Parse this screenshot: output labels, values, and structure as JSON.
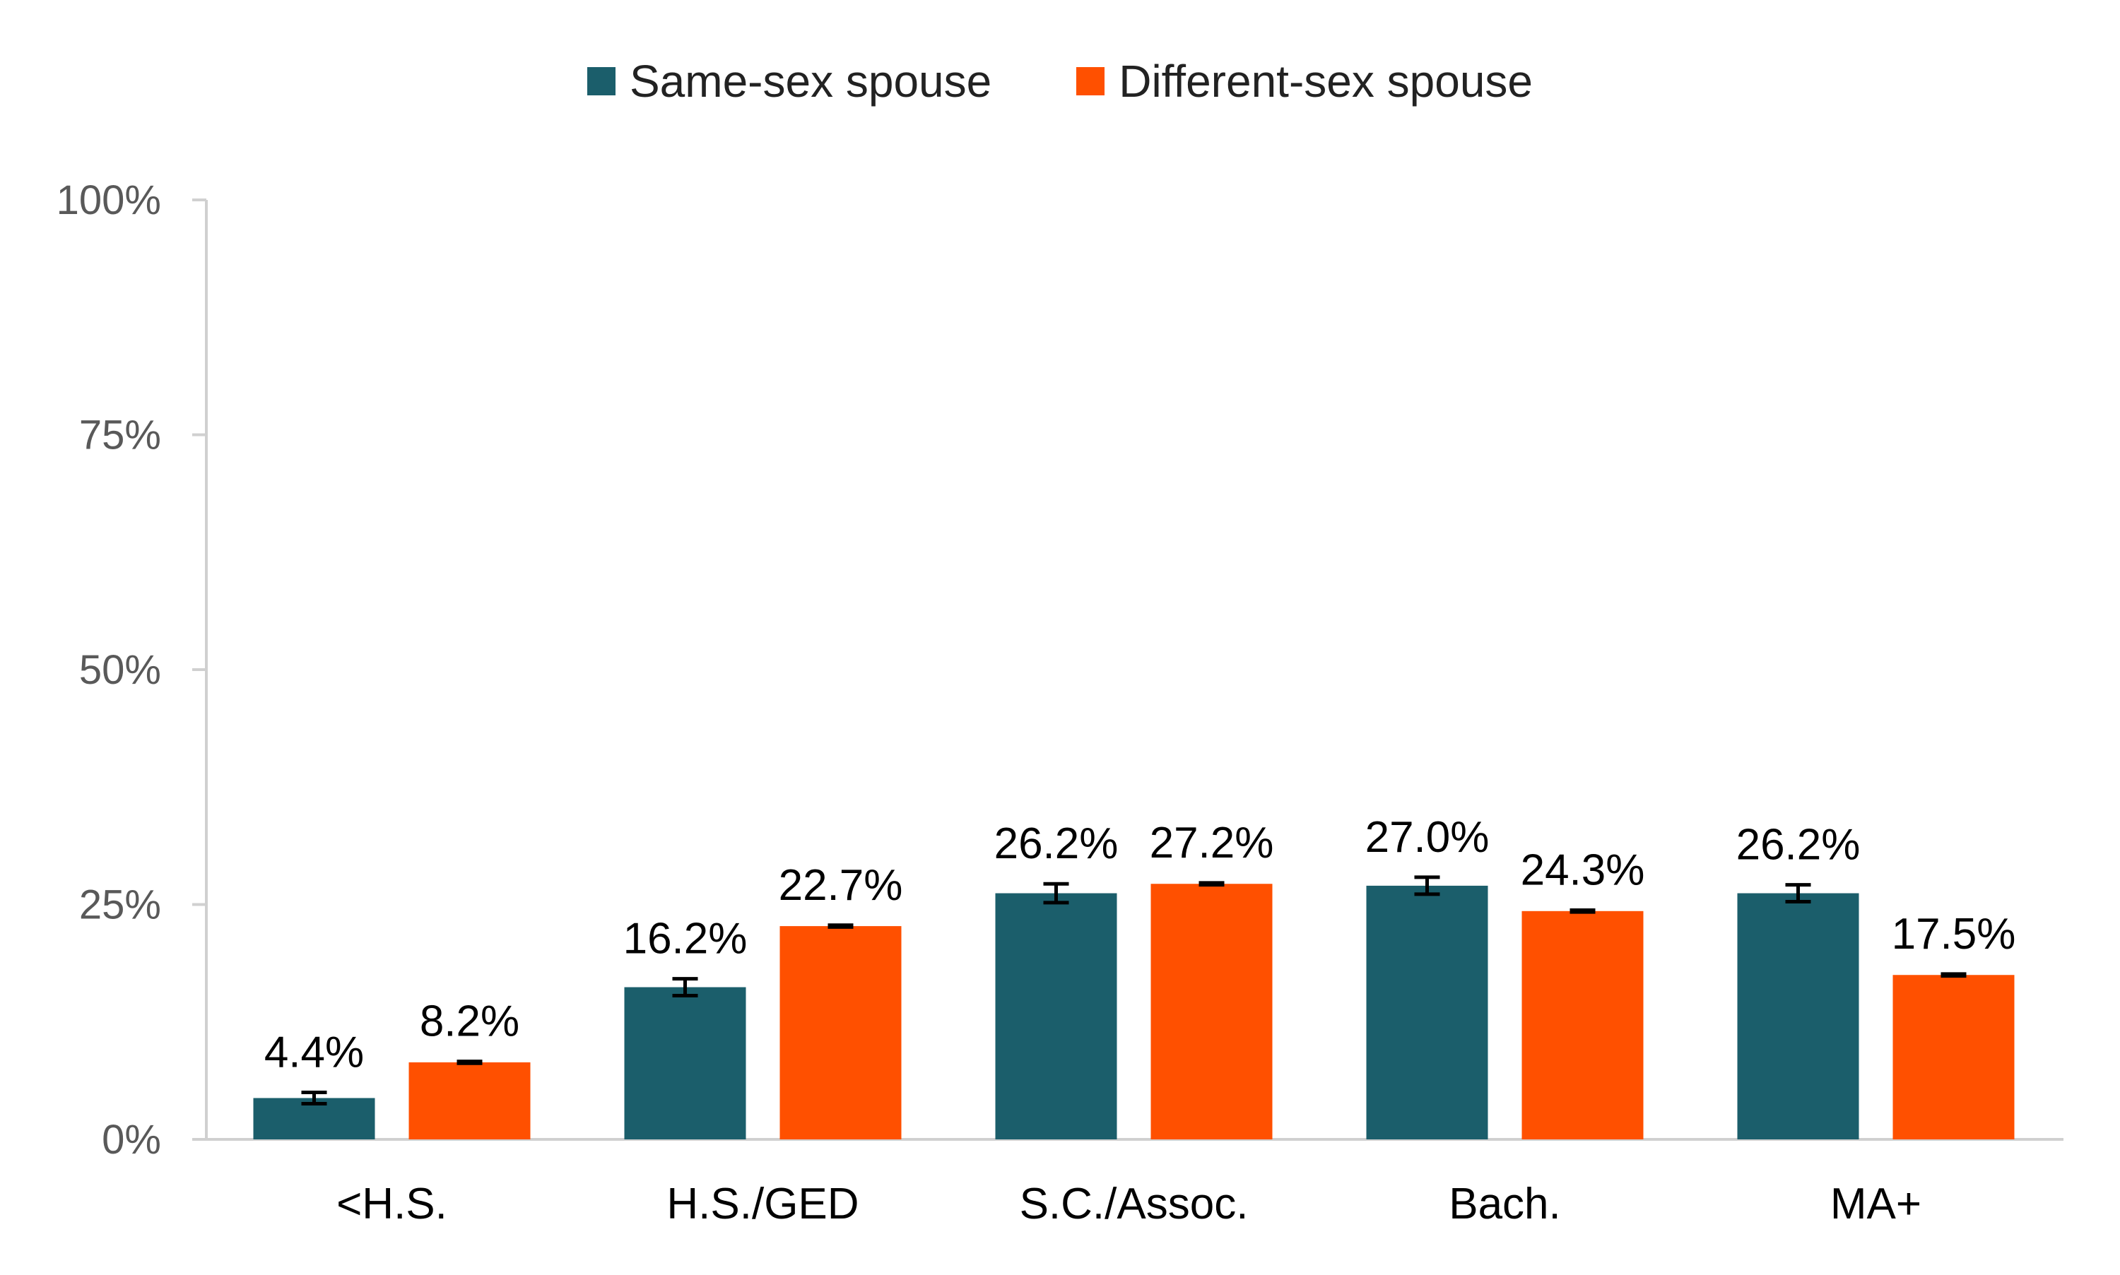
{
  "chart_data": {
    "type": "bar",
    "categories": [
      "<H.S.",
      "H.S./GED",
      "S.C./Assoc.",
      "Bach.",
      "MA+"
    ],
    "series": [
      {
        "name": "Same-sex spouse",
        "color": "#1b5e6b",
        "values": [
          4.4,
          16.2,
          26.2,
          27.0,
          26.2
        ],
        "labels": [
          "4.4%",
          "16.2%",
          "26.2%",
          "27.0%",
          "26.2%"
        ],
        "error": [
          0.6,
          0.9,
          1.0,
          0.9,
          0.9
        ]
      },
      {
        "name": "Different-sex spouse",
        "color": "#ff5000",
        "values": [
          8.2,
          22.7,
          27.2,
          24.3,
          17.5
        ],
        "labels": [
          "8.2%",
          "22.7%",
          "27.2%",
          "24.3%",
          "17.5%"
        ],
        "error": [
          0.1,
          0.1,
          0.1,
          0.1,
          0.1
        ]
      }
    ],
    "yticks": [
      "0%",
      "25%",
      "50%",
      "75%",
      "100%"
    ],
    "ytick_values": [
      0,
      25,
      50,
      75,
      100
    ],
    "ylim": [
      0,
      100
    ],
    "title": "",
    "xlabel": "",
    "ylabel": "",
    "legend_position": "top-center",
    "grid": false,
    "error_bars": true
  }
}
